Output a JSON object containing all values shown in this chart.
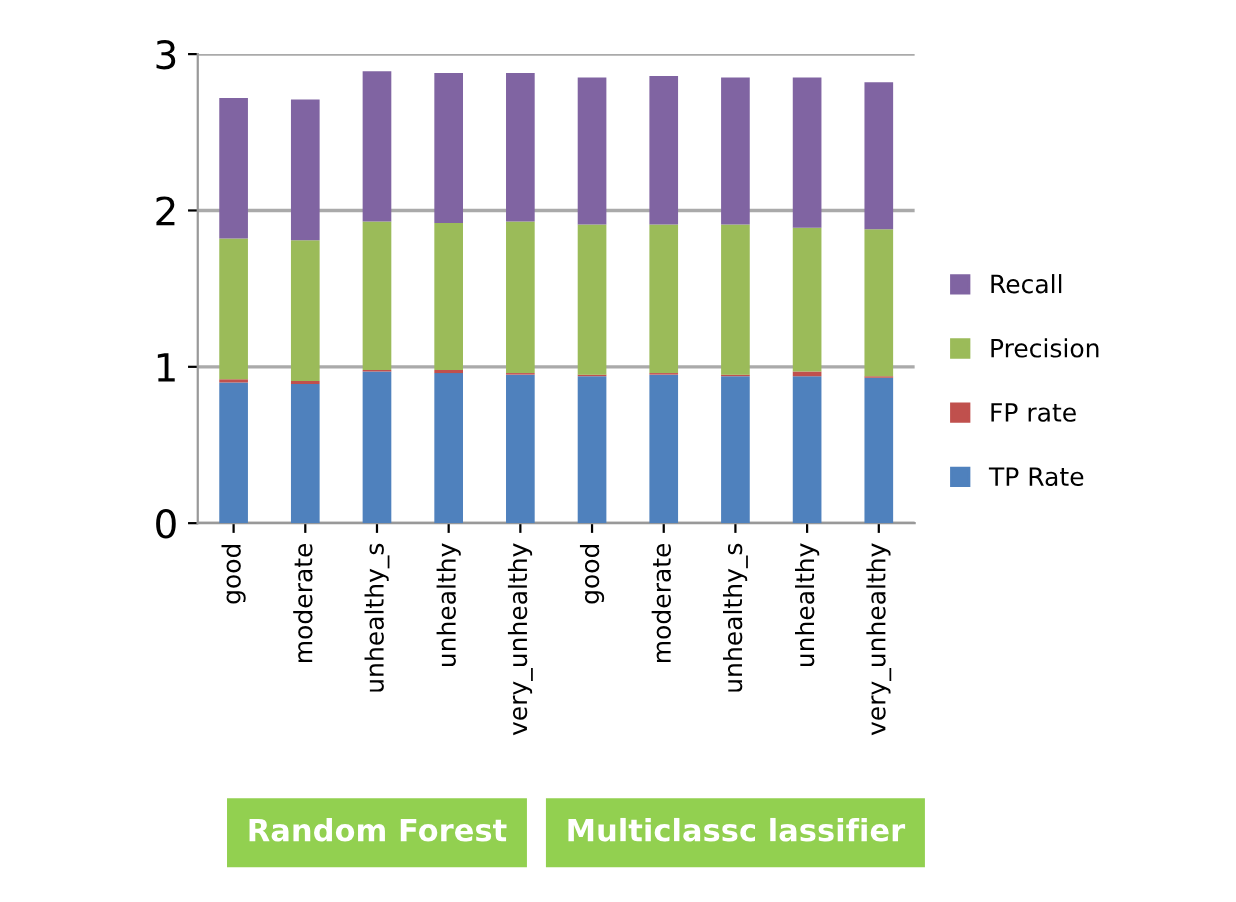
{
  "chart_data": {
    "type": "bar",
    "stacked": true,
    "categories": [
      "good",
      "moderate",
      "unhealthy_s",
      "unhealthy",
      "very_unhealthy",
      "good",
      "moderate",
      "unhealthy_s",
      "unhealthy",
      "very_unhealthy"
    ],
    "series": [
      {
        "name": "TP Rate",
        "color": "#4f81bd",
        "values": [
          0.9,
          0.89,
          0.97,
          0.96,
          0.95,
          0.94,
          0.95,
          0.94,
          0.94,
          0.93
        ]
      },
      {
        "name": "FP rate",
        "color": "#c0504d",
        "values": [
          0.02,
          0.02,
          0.01,
          0.02,
          0.01,
          0.01,
          0.01,
          0.01,
          0.03,
          0.01
        ]
      },
      {
        "name": "Precision",
        "color": "#9bbb59",
        "values": [
          0.9,
          0.9,
          0.95,
          0.94,
          0.97,
          0.96,
          0.95,
          0.96,
          0.92,
          0.94
        ]
      },
      {
        "name": "Recall",
        "color": "#8064a2",
        "values": [
          0.9,
          0.9,
          0.96,
          0.96,
          0.95,
          0.94,
          0.95,
          0.94,
          0.96,
          0.94
        ]
      }
    ],
    "ylim": [
      0,
      3
    ],
    "yticks": [
      0,
      1,
      2,
      3
    ],
    "grid": "y",
    "legend": "right",
    "annotations": [
      "Random Forest",
      "Multiclassc lassifier"
    ]
  }
}
